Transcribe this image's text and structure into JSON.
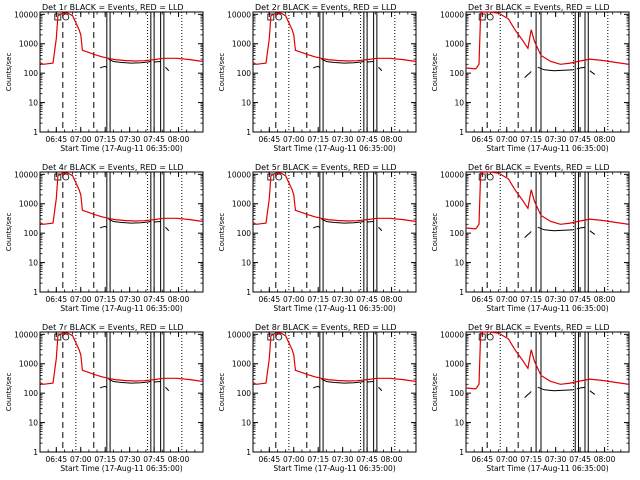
{
  "chart_data": {
    "type": "line",
    "title_template": "Det {det}r BLACK = Events, RED = LLD",
    "xlabel": "Start Time (17-Aug-11 06:35:00)",
    "ylabel": "Counts/sec",
    "yscale": "log",
    "ylim": [
      1,
      12000
    ],
    "yticks": [
      "1",
      "10",
      "100",
      "1000",
      "10000"
    ],
    "xlim_minutes": [
      0,
      100
    ],
    "xtick_labels": [
      "06:45",
      "07:00",
      "07:15",
      "07:30",
      "07:45",
      "08:00"
    ],
    "xtick_minutes": [
      10,
      25,
      40,
      55,
      70,
      85
    ],
    "series_colors": {
      "Events": "#000000",
      "LLD": "#e00000"
    },
    "legend": {
      "series": [
        "Events",
        "LLD"
      ]
    },
    "panels": [
      {
        "det": "1",
        "variant": "a"
      },
      {
        "det": "2",
        "variant": "a"
      },
      {
        "det": "3",
        "variant": "b"
      },
      {
        "det": "4",
        "variant": "a"
      },
      {
        "det": "5",
        "variant": "a"
      },
      {
        "det": "6",
        "variant": "b"
      },
      {
        "det": "7",
        "variant": "a"
      },
      {
        "det": "8",
        "variant": "a"
      },
      {
        "det": "9",
        "variant": "b"
      }
    ],
    "variants": {
      "a": {
        "lld": [
          [
            0,
            230
          ],
          [
            2,
            200
          ],
          [
            8,
            220
          ],
          [
            10,
            1500
          ],
          [
            11,
            9000
          ],
          [
            14,
            11000
          ],
          [
            17,
            11000
          ],
          [
            20,
            9000
          ],
          [
            24,
            3000
          ],
          [
            25,
            2000
          ],
          [
            26,
            600
          ],
          [
            30,
            500
          ],
          [
            34,
            420
          ],
          [
            38,
            360
          ],
          [
            42,
            320
          ],
          [
            46,
            290
          ],
          [
            52,
            270
          ],
          [
            58,
            260
          ],
          [
            64,
            265
          ],
          [
            70,
            290
          ],
          [
            76,
            320
          ],
          [
            84,
            320
          ],
          [
            92,
            290
          ],
          [
            100,
            250
          ]
        ],
        "events_segments": [
          [
            [
              37,
              150
            ],
            [
              38,
              160
            ],
            [
              40,
              170
            ],
            [
              41,
              155
            ]
          ],
          [
            [
              42,
              300
            ],
            [
              45,
              250
            ],
            [
              50,
              230
            ],
            [
              56,
              220
            ],
            [
              62,
              225
            ],
            [
              66,
              240
            ],
            [
              68,
              250
            ]
          ],
          [
            [
              70,
              240
            ],
            [
              72,
              245
            ],
            [
              74,
              250
            ]
          ],
          [
            [
              77,
              160
            ],
            [
              78,
              140
            ],
            [
              79,
              120
            ]
          ]
        ],
        "dashed_lines": [
          14,
          33
        ],
        "dotted_lines": [
          22,
          66,
          87
        ],
        "solid_lines": [
          41,
          43,
          68,
          70,
          74,
          76
        ]
      },
      "b": {
        "lld": [
          [
            0,
            150
          ],
          [
            6,
            140
          ],
          [
            8,
            200
          ],
          [
            9,
            12000
          ],
          [
            14,
            12000
          ],
          [
            20,
            11000
          ],
          [
            26,
            7000
          ],
          [
            30,
            3000
          ],
          [
            34,
            1500
          ],
          [
            38,
            700
          ],
          [
            40,
            3000
          ],
          [
            42,
            1200
          ],
          [
            46,
            400
          ],
          [
            52,
            250
          ],
          [
            58,
            200
          ],
          [
            64,
            220
          ],
          [
            70,
            260
          ],
          [
            76,
            300
          ],
          [
            84,
            270
          ],
          [
            92,
            230
          ],
          [
            100,
            200
          ]
        ],
        "events_segments": [
          [
            [
              36,
              70
            ],
            [
              37,
              80
            ],
            [
              38,
              90
            ],
            [
              39,
              100
            ],
            [
              40,
              115
            ]
          ],
          [
            [
              44,
              160
            ],
            [
              48,
              130
            ],
            [
              54,
              120
            ],
            [
              60,
              125
            ],
            [
              66,
              130
            ]
          ],
          [
            [
              68,
              140
            ],
            [
              70,
              150
            ],
            [
              73,
              160
            ]
          ],
          [
            [
              76,
              120
            ],
            [
              78,
              100
            ],
            [
              79,
              90
            ]
          ]
        ],
        "dashed_lines": [
          13,
          32
        ],
        "dotted_lines": [
          21,
          66,
          87
        ],
        "solid_lines": [
          43,
          46,
          67,
          69,
          73,
          75
        ]
      }
    }
  }
}
